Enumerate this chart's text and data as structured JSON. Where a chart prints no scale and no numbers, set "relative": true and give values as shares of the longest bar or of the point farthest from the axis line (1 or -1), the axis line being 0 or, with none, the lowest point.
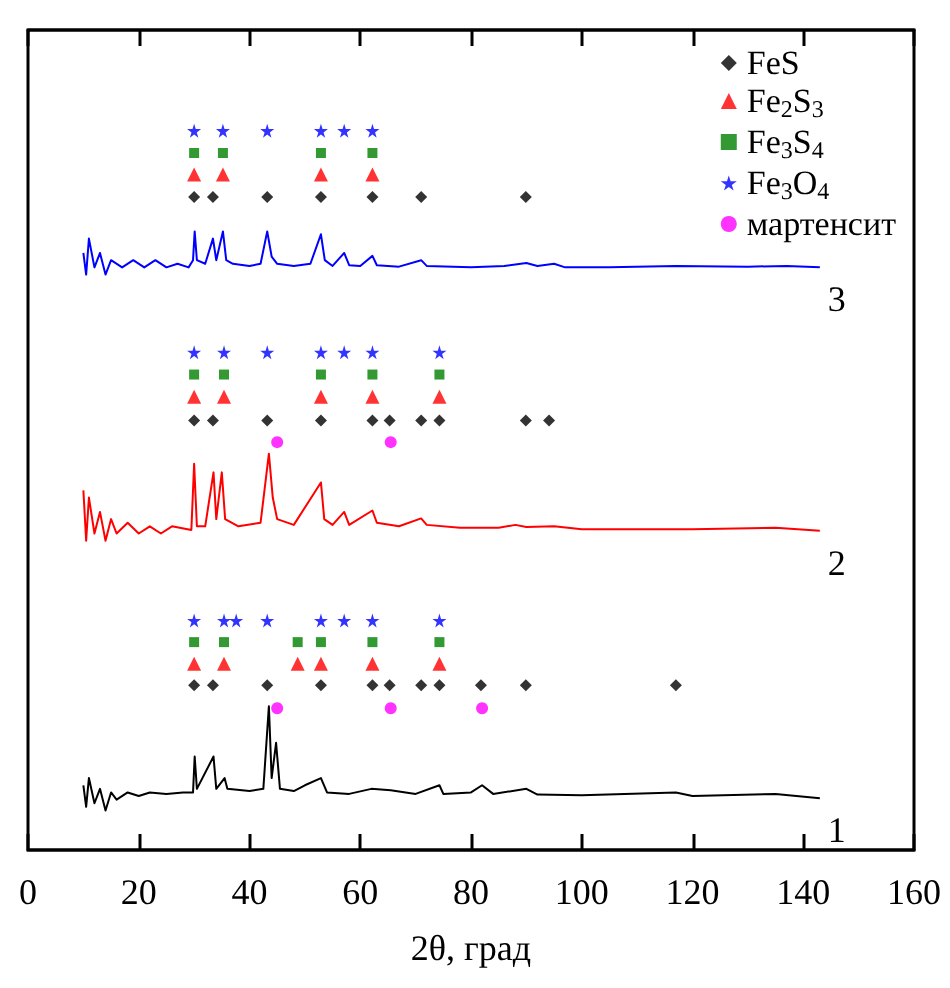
{
  "chart_data": {
    "type": "line",
    "xlabel": "2θ, град",
    "xlim": [
      0,
      160
    ],
    "xticks": [
      0,
      20,
      40,
      60,
      80,
      100,
      120,
      140,
      160
    ],
    "relative": true,
    "grid": false,
    "legend": "top right",
    "marker": "none",
    "series": [
      {
        "name": "1",
        "color": "#000000",
        "x": [
          10,
          10.5,
          11,
          12,
          13,
          14,
          15,
          16,
          18,
          20,
          22,
          25,
          28,
          29.8,
          30.1,
          30.5,
          33.5,
          34,
          35.5,
          36,
          40,
          42.5,
          43.5,
          44,
          44.8,
          45.5,
          48,
          50,
          52.9,
          54,
          58,
          62,
          65.5,
          70,
          74.3,
          75,
          80,
          82,
          84,
          90,
          92,
          100,
          117,
          120,
          135,
          143
        ],
        "values": [
          0.09,
          0.06,
          0.1,
          0.065,
          0.085,
          0.055,
          0.08,
          0.07,
          0.08,
          0.075,
          0.08,
          0.078,
          0.08,
          0.08,
          0.13,
          0.085,
          0.13,
          0.085,
          0.1,
          0.085,
          0.082,
          0.085,
          0.2,
          0.1,
          0.149,
          0.085,
          0.082,
          0.09,
          0.1,
          0.08,
          0.078,
          0.085,
          0.083,
          0.078,
          0.09,
          0.078,
          0.08,
          0.09,
          0.078,
          0.085,
          0.077,
          0.076,
          0.08,
          0.075,
          0.078,
          0.072
        ]
      },
      {
        "name": "2",
        "color": "#ff0000",
        "x": [
          10,
          10.5,
          11,
          12,
          13,
          14,
          15,
          16,
          18,
          20,
          22,
          24,
          26,
          29.5,
          30,
          30.5,
          32,
          33.5,
          34,
          35,
          35.6,
          38,
          42,
          43.5,
          44.2,
          45,
          48,
          52.9,
          53.5,
          55,
          57.1,
          58,
          62.2,
          63,
          67,
          71,
          72,
          78,
          85,
          88,
          90,
          95,
          100,
          120,
          135,
          143
        ],
        "values": [
          0.5,
          0.43,
          0.49,
          0.44,
          0.47,
          0.43,
          0.46,
          0.44,
          0.455,
          0.44,
          0.45,
          0.44,
          0.45,
          0.445,
          0.537,
          0.45,
          0.45,
          0.525,
          0.46,
          0.525,
          0.46,
          0.45,
          0.455,
          0.551,
          0.49,
          0.46,
          0.452,
          0.511,
          0.46,
          0.452,
          0.47,
          0.452,
          0.472,
          0.455,
          0.45,
          0.461,
          0.452,
          0.448,
          0.448,
          0.452,
          0.449,
          0.45,
          0.446,
          0.446,
          0.448,
          0.444
        ]
      },
      {
        "name": "3",
        "color": "#0000ff",
        "x": [
          10,
          10.5,
          11,
          12,
          13,
          14,
          15,
          17,
          19,
          21,
          23,
          25,
          27,
          29,
          29.8,
          30.1,
          30.5,
          32,
          33.4,
          34,
          35.2,
          35.8,
          37,
          40,
          42,
          43.2,
          44,
          45,
          48,
          51,
          52.9,
          53.6,
          55,
          57.1,
          58,
          60,
          62.2,
          63,
          67,
          71,
          72,
          80,
          86,
          90,
          92,
          95,
          97,
          105,
          117,
          130,
          137,
          143
        ],
        "values": [
          0.83,
          0.8,
          0.85,
          0.81,
          0.83,
          0.8,
          0.82,
          0.81,
          0.82,
          0.81,
          0.82,
          0.81,
          0.815,
          0.81,
          0.82,
          0.86,
          0.82,
          0.815,
          0.85,
          0.82,
          0.86,
          0.82,
          0.815,
          0.812,
          0.815,
          0.86,
          0.825,
          0.815,
          0.812,
          0.815,
          0.856,
          0.82,
          0.812,
          0.83,
          0.813,
          0.812,
          0.826,
          0.813,
          0.811,
          0.82,
          0.812,
          0.81,
          0.812,
          0.816,
          0.812,
          0.815,
          0.81,
          0.81,
          0.812,
          0.811,
          0.812,
          0.81
        ]
      },
      {
        "type": "scatter",
        "name": "FeS",
        "color": "#000000",
        "marker": "diamond",
        "x": [
          30,
          33.4,
          52.9,
          43.2,
          62.2,
          71,
          89.9,
          30,
          33.4,
          43.2,
          52.9,
          62.2,
          65.3,
          71,
          74.3,
          89.9,
          94.1,
          30,
          33.4,
          43.2,
          52.9,
          62.2,
          65.3,
          71,
          74.3,
          81.8,
          89.9,
          117
        ],
        "values": [
          0.908,
          0.908,
          0.908,
          0.908,
          0.908,
          0.908,
          0.908,
          0.597,
          0.597,
          0.597,
          0.597,
          0.597,
          0.597,
          0.597,
          0.597,
          0.597,
          0.597,
          0.229,
          0.229,
          0.229,
          0.229,
          0.229,
          0.229,
          0.229,
          0.229,
          0.229,
          0.229,
          0.229
        ]
      },
      {
        "type": "scatter",
        "name": "Fe$_{2}$S$_{3}$",
        "color": "#ff0000",
        "marker": "triangle",
        "x": [
          30,
          35.2,
          52.9,
          62.2,
          30,
          35.4,
          52.9,
          62.2,
          74.3,
          30,
          35.4,
          48.7,
          52.9,
          62.2,
          74.3
        ],
        "values": [
          0.939,
          0.939,
          0.939,
          0.939,
          0.63,
          0.63,
          0.63,
          0.63,
          0.63,
          0.259,
          0.259,
          0.259,
          0.259,
          0.259,
          0.259
        ]
      },
      {
        "type": "scatter",
        "name": "Fe$_{3}$S$_{4}$",
        "color": "#008000",
        "marker": "square",
        "x": [
          30,
          35.2,
          52.9,
          62.2,
          30,
          35.4,
          52.9,
          62.2,
          74.3,
          30,
          35.4,
          48.7,
          52.9,
          62.2,
          74.3
        ],
        "values": [
          0.969,
          0.969,
          0.969,
          0.969,
          0.661,
          0.661,
          0.661,
          0.661,
          0.661,
          0.289,
          0.289,
          0.289,
          0.289,
          0.289,
          0.289
        ]
      },
      {
        "type": "scatter",
        "name": "Fe$_{3}$O$_{4}$",
        "color": "#0000ff",
        "marker": "star",
        "x": [
          30,
          35.2,
          43.2,
          52.9,
          57.1,
          62.2,
          30,
          35.4,
          43.2,
          52.9,
          57.1,
          62.2,
          74.3,
          30,
          35.4,
          37.6,
          43.2,
          52.9,
          57.1,
          62.2,
          74.3
        ],
        "values": [
          1,
          1,
          1,
          1,
          1,
          1,
          0.692,
          0.692,
          0.692,
          0.692,
          0.692,
          0.692,
          0.692,
          0.319,
          0.319,
          0.319,
          0.319,
          0.319,
          0.319,
          0.319,
          0.319
        ]
      },
      {
        "type": "scatter",
        "name": "мартенсит",
        "color": "#ff00ff",
        "marker": "circle",
        "x": [
          45,
          65.5,
          45,
          65.5,
          82
        ],
        "values": [
          0.567,
          0.567,
          0.197,
          0.197,
          0.197
        ]
      }
    ]
  }
}
